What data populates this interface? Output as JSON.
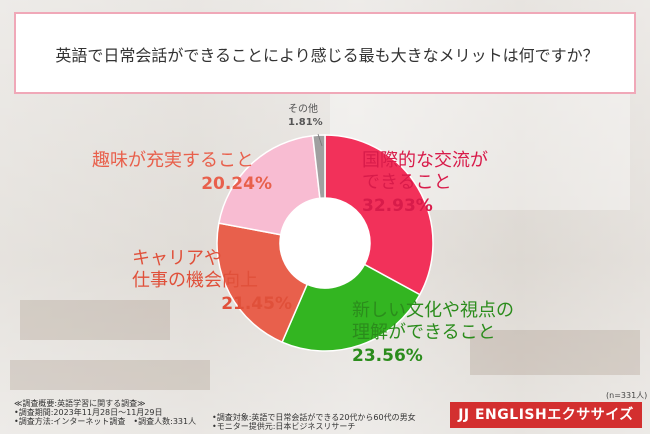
{
  "title": "英語で日常会話ができることにより感じる最も大きなメリットは何ですか？",
  "chart_data": {
    "type": "pie",
    "categories": [
      "国際的な交流ができること",
      "新しい文化や視点の理解ができること",
      "キャリアや仕事の機会向上",
      "趣味が充実すること",
      "その他"
    ],
    "values": [
      32.93,
      23.56,
      21.45,
      20.24,
      1.81
    ],
    "value_labels": [
      "32.93%",
      "23.56%",
      "21.45%",
      "20.24%",
      "1.81%"
    ],
    "slice_colors": [
      "#f2315a",
      "#33b521",
      "#e8604c",
      "#f8bcd2",
      "#a0a0a0"
    ],
    "label_colors": [
      "#d81b4a",
      "#2b8c1c",
      "#e0503a",
      "#e8604c",
      "#555555"
    ],
    "legend": "none"
  },
  "labels": {
    "kokusai": {
      "line1": "国際的な交流が",
      "line2": "できること"
    },
    "bunka": {
      "line1": "新しい文化や視点の",
      "line2": "理解ができること"
    },
    "career": {
      "line1": "キャリアや",
      "line2": "仕事の機会向上"
    },
    "shumi": {
      "line1": "趣味が充実すること"
    },
    "sonota": {
      "line1": "その他"
    }
  },
  "sample_note": "(n=331人)",
  "footer": {
    "heading": "≪調査概要:英語学習に関する調査≫",
    "period": "•調査期間:2023年11月28日～11月29日",
    "method_and_count": "•調査方法:インターネット調査　•調査人数:331人",
    "target": "•調査対象:英語で日常会話ができる20代から60代の男女",
    "provider": "•モニター提供元:日本ビジネスリサーチ"
  },
  "brand": "JJ ENGLISHエクササイズ"
}
